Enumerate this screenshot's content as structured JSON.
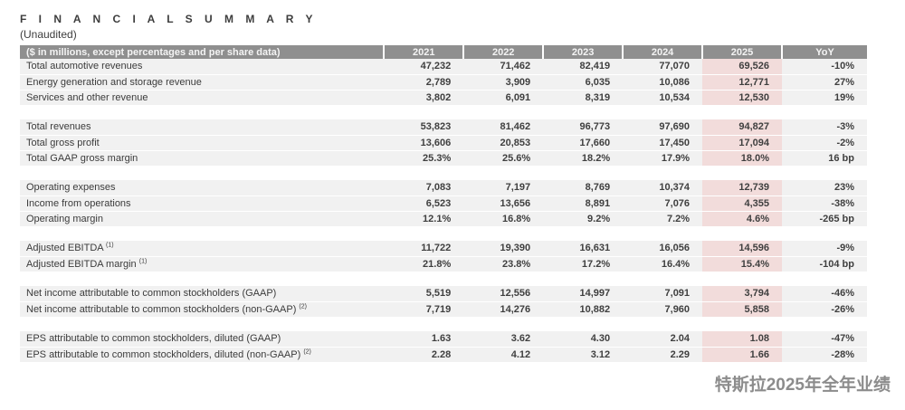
{
  "page": {
    "title": "F I N A N C I A L   S U M M A R Y",
    "subtitle": "(Unaudited)",
    "caption": "特斯拉2025年全年业绩"
  },
  "colors": {
    "header_bg": "#8f8f8f",
    "header_text": "#f4f4f4",
    "row_bg": "#f1f1f1",
    "highlight_bg": "#f2dcdb",
    "text": "#3b3b3b",
    "caption_text": "#8c8c8c"
  },
  "table": {
    "header": {
      "label": "($ in millions, except percentages and per share data)",
      "columns": [
        "2021",
        "2022",
        "2023",
        "2024",
        "2025",
        "YoY"
      ]
    },
    "highlight_column": "2025",
    "sections": [
      {
        "rows": [
          {
            "label": "Total automotive revenues",
            "values": [
              "47,232",
              "71,462",
              "82,419",
              "77,070",
              "69,526"
            ],
            "yoy": "-10%"
          },
          {
            "label": "Energy generation and storage revenue",
            "values": [
              "2,789",
              "3,909",
              "6,035",
              "10,086",
              "12,771"
            ],
            "yoy": "27%"
          },
          {
            "label": "Services and other revenue",
            "values": [
              "3,802",
              "6,091",
              "8,319",
              "10,534",
              "12,530"
            ],
            "yoy": "19%"
          }
        ]
      },
      {
        "rows": [
          {
            "label": "Total revenues",
            "values": [
              "53,823",
              "81,462",
              "96,773",
              "97,690",
              "94,827"
            ],
            "yoy": "-3%"
          },
          {
            "label": "Total gross profit",
            "values": [
              "13,606",
              "20,853",
              "17,660",
              "17,450",
              "17,094"
            ],
            "yoy": "-2%"
          },
          {
            "label": "Total GAAP gross margin",
            "values": [
              "25.3%",
              "25.6%",
              "18.2%",
              "17.9%",
              "18.0%"
            ],
            "yoy": "16 bp"
          }
        ]
      },
      {
        "rows": [
          {
            "label": "Operating expenses",
            "values": [
              "7,083",
              "7,197",
              "8,769",
              "10,374",
              "12,739"
            ],
            "yoy": "23%"
          },
          {
            "label": "Income from operations",
            "values": [
              "6,523",
              "13,656",
              "8,891",
              "7,076",
              "4,355"
            ],
            "yoy": "-38%"
          },
          {
            "label": "Operating margin",
            "values": [
              "12.1%",
              "16.8%",
              "9.2%",
              "7.2%",
              "4.6%"
            ],
            "yoy": "-265 bp"
          }
        ]
      },
      {
        "rows": [
          {
            "label": "Adjusted EBITDA",
            "sup": "(1)",
            "values": [
              "11,722",
              "19,390",
              "16,631",
              "16,056",
              "14,596"
            ],
            "yoy": "-9%"
          },
          {
            "label": "Adjusted EBITDA margin",
            "sup": "(1)",
            "values": [
              "21.8%",
              "23.8%",
              "17.2%",
              "16.4%",
              "15.4%"
            ],
            "yoy": "-104 bp"
          }
        ]
      },
      {
        "rows": [
          {
            "label": "Net income attributable to common stockholders (GAAP)",
            "values": [
              "5,519",
              "12,556",
              "14,997",
              "7,091",
              "3,794"
            ],
            "yoy": "-46%"
          },
          {
            "label": "Net income attributable to common stockholders (non-GAAP)",
            "sup": "(2)",
            "values": [
              "7,719",
              "14,276",
              "10,882",
              "7,960",
              "5,858"
            ],
            "yoy": "-26%"
          }
        ]
      },
      {
        "rows": [
          {
            "label": "EPS attributable to common stockholders, diluted (GAAP)",
            "values": [
              "1.63",
              "3.62",
              "4.30",
              "2.04",
              "1.08"
            ],
            "yoy": "-47%"
          },
          {
            "label": "EPS attributable to common stockholders, diluted (non-GAAP)",
            "sup": "(2)",
            "values": [
              "2.28",
              "4.12",
              "3.12",
              "2.29",
              "1.66"
            ],
            "yoy": "-28%"
          }
        ]
      }
    ]
  }
}
